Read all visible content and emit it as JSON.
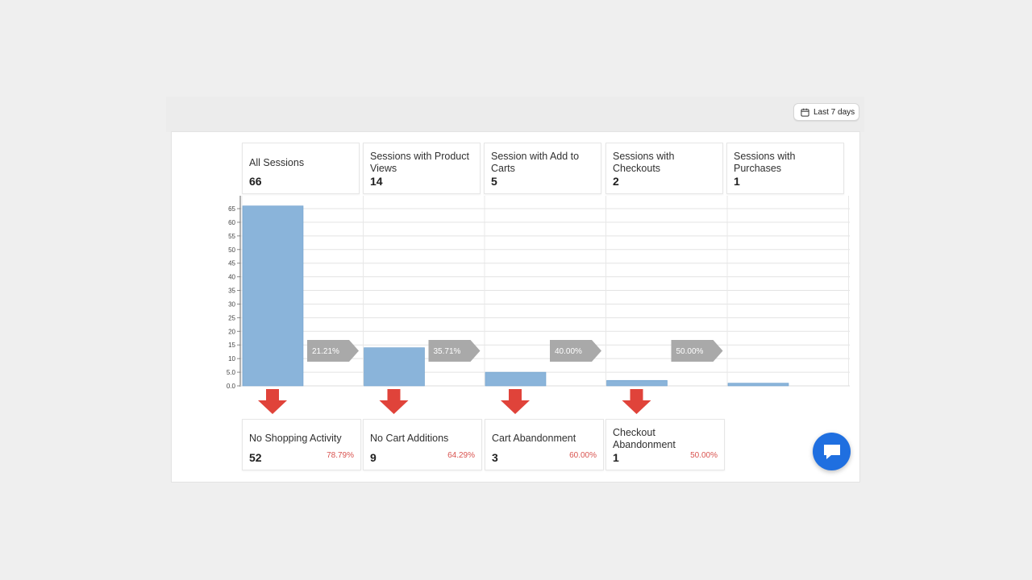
{
  "date_range": {
    "label": "Last 7 days"
  },
  "colors": {
    "bar": "#8ab4da",
    "bar_stroke": "#6e9fcc",
    "connector": "#a9a9a9",
    "drop_arrow": "#e0433a",
    "drop_pct": "#d9534f",
    "chat": "#1f6fe0"
  },
  "stages": [
    {
      "label": "All Sessions",
      "value": "66"
    },
    {
      "label": "Sessions with Product Views",
      "value": "14"
    },
    {
      "label": "Session with Add to Carts",
      "value": "5"
    },
    {
      "label": "Sessions with Checkouts",
      "value": "2"
    },
    {
      "label": "Sessions with Purchases",
      "value": "1"
    }
  ],
  "dropoffs": [
    {
      "label": "No Shopping Activity",
      "value": "52",
      "pct": "78.79%"
    },
    {
      "label": "No Cart Additions",
      "value": "9",
      "pct": "64.29%"
    },
    {
      "label": "Cart Abandonment",
      "value": "3",
      "pct": "60.00%"
    },
    {
      "label": "Checkout Abandonment",
      "value": "1",
      "pct": "50.00%"
    }
  ],
  "chart_data": {
    "type": "bar",
    "categories": [
      "All Sessions",
      "Sessions with Product Views",
      "Session with Add to Carts",
      "Sessions with Checkouts",
      "Sessions with Purchases"
    ],
    "values": [
      66,
      14,
      5,
      2,
      1
    ],
    "conversion_rates": [
      "21.21%",
      "35.71%",
      "40.00%",
      "50.00%"
    ],
    "ylim": [
      0,
      70
    ],
    "yticks": [
      "0.0",
      "5.0",
      "10",
      "15",
      "20",
      "25",
      "30",
      "35",
      "40",
      "45",
      "50",
      "55",
      "60",
      "65"
    ],
    "grid": true
  }
}
